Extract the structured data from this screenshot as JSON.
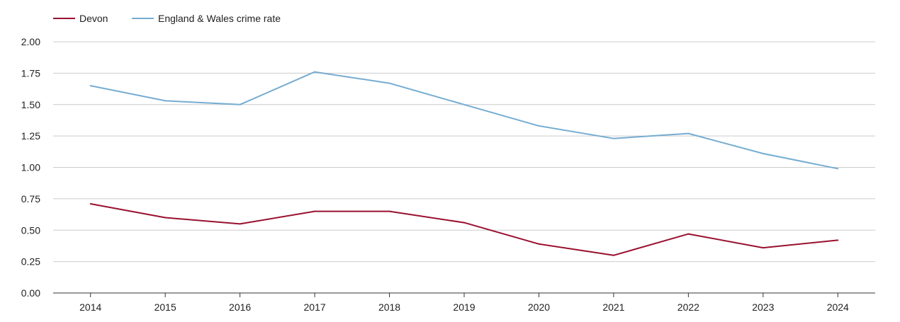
{
  "chart_data": {
    "type": "line",
    "title": "",
    "xlabel": "",
    "ylabel": "",
    "categories": [
      "2014",
      "2015",
      "2016",
      "2017",
      "2018",
      "2019",
      "2020",
      "2021",
      "2022",
      "2023",
      "2024"
    ],
    "ylim": [
      0,
      2
    ],
    "yticks": [
      "0.00",
      "0.25",
      "0.50",
      "0.75",
      "1.00",
      "1.25",
      "1.50",
      "1.75",
      "2.00"
    ],
    "grid": true,
    "legend_position": "top-left",
    "series": [
      {
        "name": "Devon",
        "color": "#99102f",
        "values": [
          0.71,
          0.6,
          0.55,
          0.65,
          0.65,
          0.56,
          0.39,
          0.3,
          0.47,
          0.36,
          0.42
        ]
      },
      {
        "name": "England & Wales crime rate",
        "color": "#76acd1",
        "values": [
          1.65,
          1.53,
          1.5,
          1.76,
          1.67,
          1.5,
          1.33,
          1.23,
          1.27,
          1.11,
          0.99
        ]
      }
    ]
  }
}
